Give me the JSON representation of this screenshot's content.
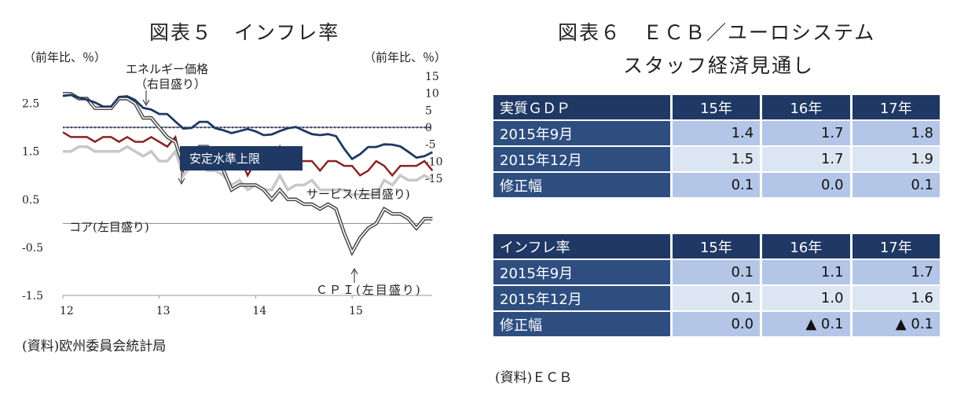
{
  "left_panel": {
    "title": "図表５　インフレ率",
    "source": "(資料)欧州委員会統計局"
  },
  "right_panel": {
    "title_line1": "図表６　ＥＣＢ／ユーロシステム",
    "title_line2": "スタッフ経済見通し",
    "source": "(資料)ＥＣＢ",
    "table_gdp": {
      "header": [
        "実質ＧＤＰ",
        "15年",
        "16年",
        "17年"
      ],
      "rows": [
        {
          "label": "2015年9月",
          "values": [
            "1.4",
            "1.7",
            "1.8"
          ]
        },
        {
          "label": "2015年12月",
          "values": [
            "1.5",
            "1.7",
            "1.9"
          ]
        },
        {
          "label": "修正幅",
          "values": [
            "0.1",
            "0.0",
            "0.1"
          ]
        }
      ]
    },
    "table_inflation": {
      "header": [
        "インフレ率",
        "15年",
        "16年",
        "17年"
      ],
      "rows": [
        {
          "label": "2015年9月",
          "values": [
            "0.1",
            "1.1",
            "1.7"
          ]
        },
        {
          "label": "2015年12月",
          "values": [
            "0.1",
            "1.0",
            "1.6"
          ]
        },
        {
          "label": "修正幅",
          "values": [
            "0.0",
            "▲ 0.1",
            "▲ 0.1"
          ]
        }
      ]
    }
  },
  "chart_data": {
    "type": "line",
    "left_axis_label": "（前年比、％）",
    "right_axis_label": "（前年比、％）",
    "left_ticks": [
      "2.5",
      "1.5",
      "0.5",
      "-0.5",
      "-1.5"
    ],
    "left_tick_values": [
      2.5,
      1.5,
      0.5,
      -0.5,
      -1.5
    ],
    "right_ticks": [
      "15",
      "10",
      "5",
      "0",
      "-5",
      "-10",
      "-15"
    ],
    "right_tick_values": [
      15,
      10,
      5,
      0,
      -5,
      -10,
      -15
    ],
    "ylim_left": [
      -1.5,
      3.1
    ],
    "ylim_right": [
      -15,
      15
    ],
    "x_ticks": [
      "12",
      "13",
      "14",
      "15"
    ],
    "x_tick_values": [
      2012.0,
      2013.0,
      2014.0,
      2015.0
    ],
    "xlim": [
      2012.0,
      2015.83
    ],
    "annotation_box": "安定水準上限",
    "stability_upper_limit": 2.0,
    "series": [
      {
        "name": "エネルギー価格",
        "label_line1": "エネルギー価格",
        "label_line2": "（右目盛り）",
        "axis": "right",
        "color": "#1f3864",
        "x": [
          2012.0,
          2012.083,
          2012.167,
          2012.25,
          2012.333,
          2012.417,
          2012.5,
          2012.583,
          2012.667,
          2012.75,
          2012.833,
          2012.917,
          2013.0,
          2013.083,
          2013.167,
          2013.25,
          2013.333,
          2013.417,
          2013.5,
          2013.583,
          2013.667,
          2013.75,
          2013.833,
          2013.917,
          2014.0,
          2014.083,
          2014.167,
          2014.25,
          2014.333,
          2014.417,
          2014.5,
          2014.583,
          2014.667,
          2014.75,
          2014.833,
          2014.917,
          2015.0,
          2015.083,
          2015.167,
          2015.25,
          2015.333,
          2015.417,
          2015.5,
          2015.583,
          2015.667,
          2015.75,
          2015.833
        ],
        "values": [
          9.2,
          9.5,
          8.7,
          8.1,
          7.3,
          6.1,
          6.1,
          8.9,
          9.1,
          8.0,
          5.7,
          5.2,
          3.9,
          3.9,
          1.7,
          -0.4,
          -0.2,
          1.6,
          1.6,
          -0.3,
          -0.9,
          -1.7,
          -1.1,
          -0.5,
          -1.2,
          -2.3,
          -2.1,
          -1.1,
          -0.3,
          0.1,
          -1.0,
          -2.0,
          -2.3,
          -2.0,
          -2.6,
          -6.3,
          -9.3,
          -7.9,
          -5.8,
          -5.8,
          -5.0,
          -5.1,
          -5.6,
          -7.2,
          -8.9,
          -8.5,
          -7.3
        ]
      },
      {
        "name": "ＣＰＩ",
        "label": "ＣＰＩ(左目盛り)",
        "axis": "left",
        "color": "#444444",
        "style": "double",
        "x": [
          2012.0,
          2012.083,
          2012.167,
          2012.25,
          2012.333,
          2012.417,
          2012.5,
          2012.583,
          2012.667,
          2012.75,
          2012.833,
          2012.917,
          2013.0,
          2013.083,
          2013.167,
          2013.25,
          2013.333,
          2013.417,
          2013.5,
          2013.583,
          2013.667,
          2013.75,
          2013.833,
          2013.917,
          2014.0,
          2014.083,
          2014.167,
          2014.25,
          2014.333,
          2014.417,
          2014.5,
          2014.583,
          2014.667,
          2014.75,
          2014.833,
          2014.917,
          2015.0,
          2015.083,
          2015.167,
          2015.25,
          2015.333,
          2015.417,
          2015.5,
          2015.583,
          2015.667,
          2015.75,
          2015.833
        ],
        "values": [
          2.7,
          2.7,
          2.6,
          2.6,
          2.4,
          2.4,
          2.4,
          2.6,
          2.6,
          2.5,
          2.2,
          2.2,
          2.0,
          1.8,
          1.7,
          1.2,
          1.4,
          1.6,
          1.6,
          1.3,
          1.1,
          0.7,
          0.8,
          0.8,
          0.8,
          0.7,
          0.5,
          0.7,
          0.5,
          0.5,
          0.4,
          0.4,
          0.3,
          0.4,
          0.3,
          -0.2,
          -0.6,
          -0.3,
          -0.1,
          0.0,
          0.3,
          0.2,
          0.2,
          0.1,
          -0.1,
          0.1,
          0.1
        ]
      },
      {
        "name": "サービス",
        "label": "サービス(左目盛り)",
        "axis": "left",
        "color": "#8b2323",
        "x": [
          2012.0,
          2012.083,
          2012.167,
          2012.25,
          2012.333,
          2012.417,
          2012.5,
          2012.583,
          2012.667,
          2012.75,
          2012.833,
          2012.917,
          2013.0,
          2013.083,
          2013.167,
          2013.25,
          2013.333,
          2013.417,
          2013.5,
          2013.583,
          2013.667,
          2013.75,
          2013.833,
          2013.917,
          2014.0,
          2014.083,
          2014.167,
          2014.25,
          2014.333,
          2014.417,
          2014.5,
          2014.583,
          2014.667,
          2014.75,
          2014.833,
          2014.917,
          2015.0,
          2015.083,
          2015.167,
          2015.25,
          2015.333,
          2015.417,
          2015.5,
          2015.583,
          2015.667,
          2015.75,
          2015.833
        ],
        "values": [
          1.9,
          1.8,
          1.8,
          1.8,
          1.7,
          1.8,
          1.8,
          1.7,
          1.8,
          1.7,
          1.7,
          1.8,
          1.7,
          1.6,
          1.8,
          1.1,
          1.4,
          1.4,
          1.4,
          1.4,
          1.4,
          1.2,
          1.4,
          1.0,
          1.3,
          1.3,
          1.3,
          1.6,
          1.2,
          1.3,
          1.3,
          1.3,
          1.1,
          1.3,
          1.3,
          1.2,
          1.2,
          1.0,
          1.1,
          1.3,
          1.2,
          1.0,
          1.2,
          1.2,
          1.2,
          1.3,
          1.1
        ]
      },
      {
        "name": "コア",
        "label": "コア(左目盛り)",
        "axis": "left",
        "color": "#c8c8c8",
        "x": [
          2012.0,
          2012.083,
          2012.167,
          2012.25,
          2012.333,
          2012.417,
          2012.5,
          2012.583,
          2012.667,
          2012.75,
          2012.833,
          2012.917,
          2013.0,
          2013.083,
          2013.167,
          2013.25,
          2013.333,
          2013.417,
          2013.5,
          2013.583,
          2013.667,
          2013.75,
          2013.833,
          2013.917,
          2014.0,
          2014.083,
          2014.167,
          2014.25,
          2014.333,
          2014.417,
          2014.5,
          2014.583,
          2014.667,
          2014.75,
          2014.833,
          2014.917,
          2015.0,
          2015.083,
          2015.167,
          2015.25,
          2015.333,
          2015.417,
          2015.5,
          2015.583,
          2015.667,
          2015.75,
          2015.833
        ],
        "values": [
          1.5,
          1.5,
          1.6,
          1.6,
          1.5,
          1.5,
          1.5,
          1.5,
          1.6,
          1.5,
          1.4,
          1.5,
          1.3,
          1.3,
          1.5,
          1.0,
          1.2,
          1.2,
          1.1,
          1.1,
          1.0,
          0.8,
          0.9,
          0.7,
          0.8,
          0.7,
          0.7,
          1.0,
          0.7,
          0.8,
          0.8,
          0.9,
          0.7,
          0.7,
          0.7,
          0.7,
          0.6,
          0.6,
          0.6,
          0.6,
          0.9,
          0.8,
          1.0,
          0.9,
          0.9,
          1.0,
          0.9
        ]
      }
    ],
    "grid": false,
    "legend": "none"
  }
}
